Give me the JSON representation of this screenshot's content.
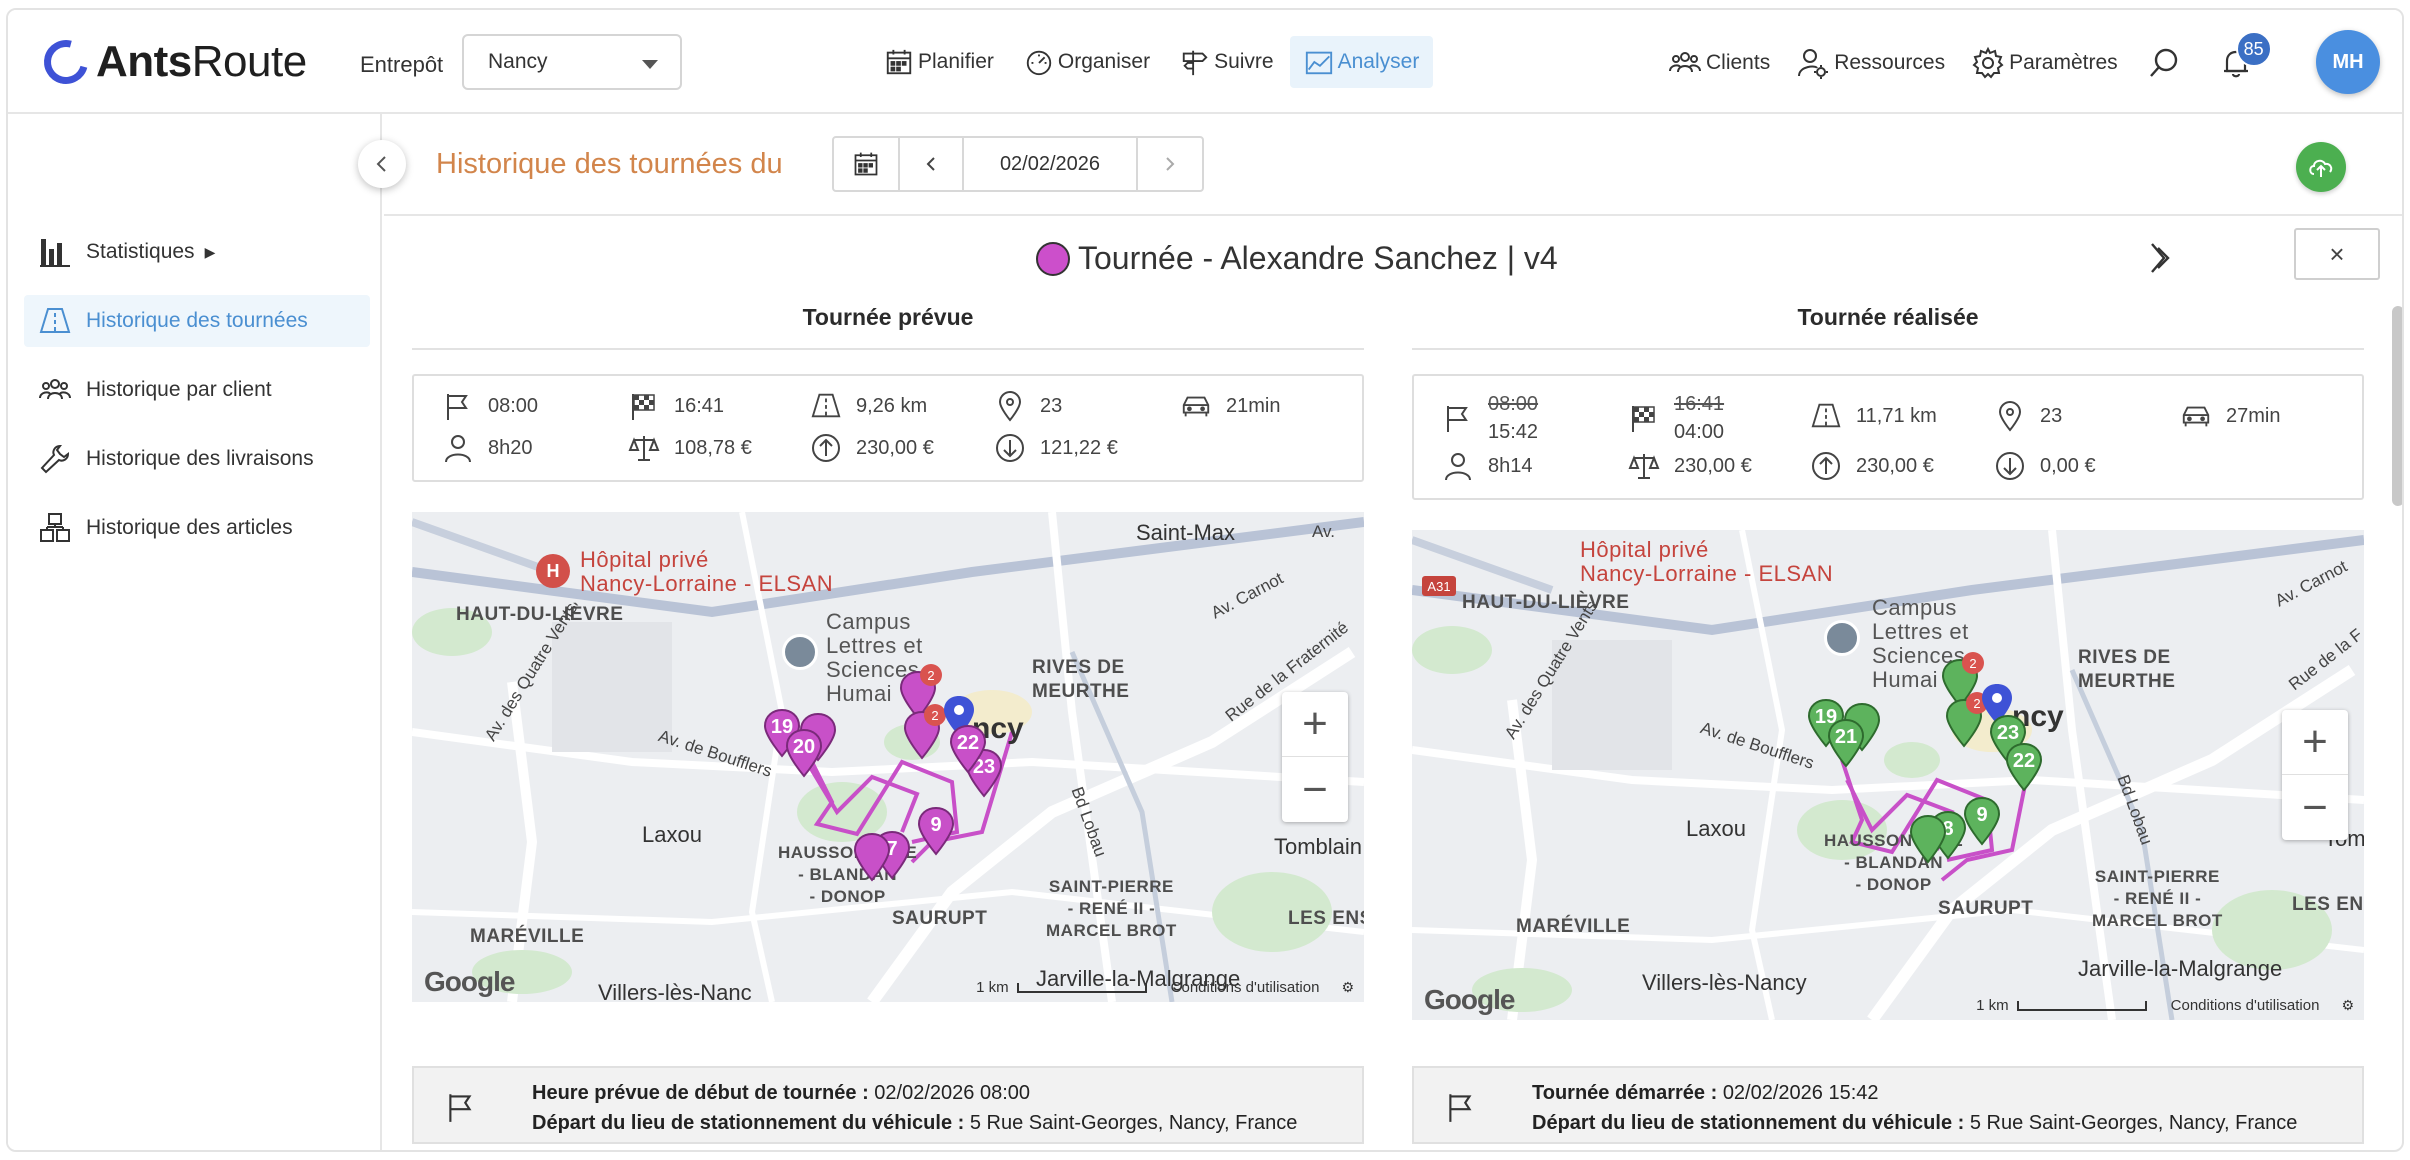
{
  "app": {
    "brand_bold": "Ants",
    "brand_light": "Route"
  },
  "header": {
    "warehouse_label": "Entrepôt",
    "warehouse_value": "Nancy",
    "nav": [
      {
        "label": "Planifier",
        "icon": "calendar-icon"
      },
      {
        "label": "Organiser",
        "icon": "gauge-icon"
      },
      {
        "label": "Suivre",
        "icon": "signpost-icon"
      },
      {
        "label": "Analyser",
        "icon": "chart-icon",
        "active": true
      }
    ],
    "right_nav": [
      {
        "label": "Clients",
        "icon": "users-icon"
      },
      {
        "label": "Ressources",
        "icon": "user-gear-icon"
      },
      {
        "label": "Paramètres",
        "icon": "gear-icon"
      }
    ],
    "notification_count": "85",
    "avatar_initials": "MH"
  },
  "sidebar": {
    "items": [
      {
        "label": "Statistiques",
        "icon": "bar-chart-icon"
      },
      {
        "label": "Historique des tournées",
        "icon": "road-icon",
        "active": true
      },
      {
        "label": "Historique par client",
        "icon": "users-icon"
      },
      {
        "label": "Historique des livraisons",
        "icon": "wrench-icon"
      },
      {
        "label": "Historique des articles",
        "icon": "boxes-icon"
      }
    ]
  },
  "subheader": {
    "title": "Historique des tournées du",
    "date": "02/02/2026"
  },
  "tour": {
    "title": "Tournée - Alexandre Sanchez | v4",
    "color": "#cc4fcb"
  },
  "planned": {
    "title": "Tournée prévue",
    "start": "08:00",
    "end": "16:41",
    "distance": "9,26 km",
    "stops": "23",
    "drive": "21min",
    "duration": "8h20",
    "balance": "108,78 €",
    "pickup": "230,00 €",
    "delivery": "121,22 €",
    "info_label_1": "Heure prévue de début de tournée :",
    "info_value_1": "02/02/2026 08:00",
    "info_label_2": "Départ du lieu de stationnement du véhicule :",
    "info_value_2": "5 Rue Saint-Georges, Nancy, France"
  },
  "actual": {
    "title": "Tournée réalisée",
    "start_planned": "08:00",
    "start": "15:42",
    "end_planned": "16:41",
    "end": "04:00",
    "distance": "11,71 km",
    "stops": "23",
    "drive": "27min",
    "duration": "8h14",
    "balance": "230,00 €",
    "pickup": "230,00 €",
    "delivery": "0,00 €",
    "info_label_1": "Tournée démarrée :",
    "info_value_1": "02/02/2026 15:42",
    "info_label_2": "Départ du lieu de stationnement du véhicule :",
    "info_value_2": "5 Rue Saint-Georges, Nancy, France"
  },
  "map": {
    "hospital_1": "Hôpital privé",
    "hospital_2": "Nancy-Lorraine - ELSAN",
    "campus_1": "Campus",
    "campus_2": "Lettres et",
    "campus_3": "Sciences",
    "campus_4": "Humai",
    "saint_max": "Saint-Max",
    "haut_lievre": "HAUT-DU-LIÈVRE",
    "rives_1": "RIVES DE",
    "rives_2": "MEURTHE",
    "nancy": "ncy",
    "laxou": "Laxou",
    "tomblaine": "Tomblain",
    "tom_short": "Tom",
    "haussonville_1": "HAUSSONVILLE",
    "haussonville_2": "- BLANDAN",
    "haussonville_3": "- DONOP",
    "saint_pierre_1": "SAINT-PIERRE",
    "saint_pierre_2": "- RENÉ II -",
    "saint_pierre_3": "MARCEL BROT",
    "saurupt": "SAURUPT",
    "les_ensang": "LES ENSANG",
    "les_ens": "LES ENS",
    "mareville": "MARÉVILLE",
    "villers": "Villers-lès-Nancy",
    "villers_cut": "Villers-lès-Nanc",
    "jarville": "Jarville-la-Malgrange",
    "av_carnot": "Av. Carnot",
    "av_boufflers": "Av. de Boufflers",
    "quatre_vents": "Av. des Quatre Vents",
    "bd_lobau": "Bd Lobau",
    "fraternite": "Rue de la Fraternité",
    "rue_de_la_f": "Rue de la F",
    "a31": "A31",
    "scale": "1 km",
    "terms": "Conditions d'utilisation",
    "google": "Google",
    "zoom_in": "+",
    "zoom_out": "−",
    "av_short": "Av.",
    "planned_markers": [
      "19",
      "20",
      "2",
      "2",
      "23",
      "22",
      "9",
      "7"
    ],
    "actual_markers": [
      "19",
      "21",
      "2",
      "2",
      "23",
      "22",
      "9",
      "8"
    ]
  },
  "close_label": "×"
}
